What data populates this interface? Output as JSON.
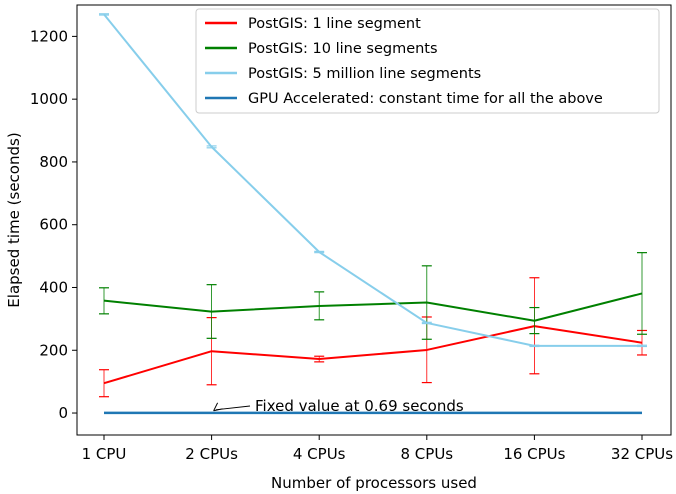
{
  "chart_data": {
    "type": "line",
    "xlabel": "Number of processors used",
    "ylabel": "Elapsed time (seconds)",
    "categories": [
      "1 CPU",
      "2 CPUs",
      "4 CPUs",
      "8 CPUs",
      "16 CPUs",
      "32 CPUs"
    ],
    "ylim": [
      -70,
      1300
    ],
    "yticks": [
      0,
      200,
      400,
      600,
      800,
      1000,
      1200
    ],
    "grid": false,
    "legend_position": "top-right",
    "series": [
      {
        "name": "PostGIS: 1 line segment",
        "color": "#ff0000",
        "values": [
          95,
          197,
          172,
          201,
          277,
          224
        ],
        "error_low": [
          52,
          90,
          163,
          97,
          125,
          185
        ],
        "error_high": [
          138,
          304,
          181,
          306,
          431,
          263
        ]
      },
      {
        "name": "PostGIS: 10 line segments",
        "color": "#008000",
        "values": [
          358,
          323,
          341,
          352,
          294,
          381
        ],
        "error_low": [
          316,
          238,
          297,
          235,
          253,
          251
        ],
        "error_high": [
          399,
          409,
          386,
          469,
          336,
          511
        ]
      },
      {
        "name": "PostGIS: 5 million line segments",
        "color": "#87ceeb",
        "values": [
          1270,
          848,
          513,
          287,
          214,
          214
        ],
        "error_low": [
          1268,
          845,
          511,
          285,
          212,
          212
        ],
        "error_high": [
          1272,
          851,
          515,
          289,
          216,
          216
        ]
      },
      {
        "name": "GPU Accelerated: constant time for all the above",
        "color": "#1f77b4",
        "values": [
          0.69,
          0.69,
          0.69,
          0.69,
          0.69,
          0.69
        ]
      }
    ],
    "annotations": [
      {
        "text": "Fixed value at 0.69 seconds",
        "x": "2 CPUs",
        "y": 0.69
      }
    ]
  }
}
